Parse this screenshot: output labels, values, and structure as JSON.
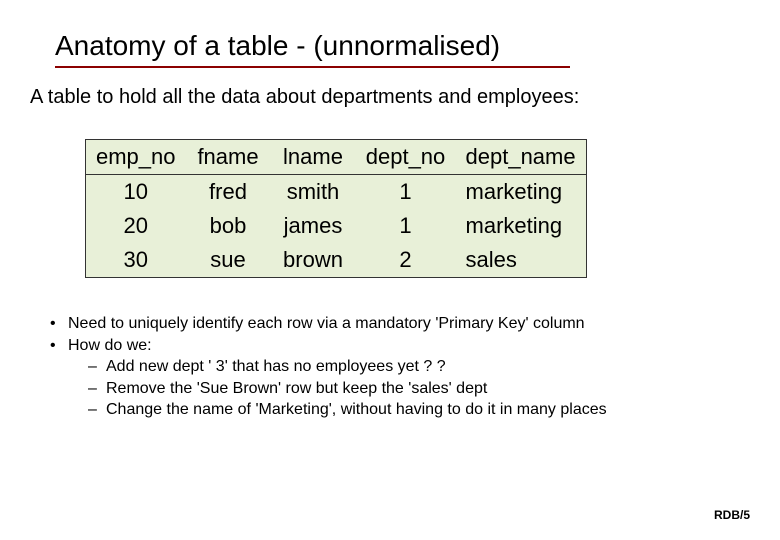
{
  "slide": {
    "title": "Anatomy of a table - (unnormalised)",
    "subtitle": "A table to hold all the data about departments and employees:",
    "footer": "RDB/5"
  },
  "table": {
    "type": "table",
    "background_color": "#e8f0d8",
    "border_color": "#333333",
    "header_fontsize": 22,
    "cell_fontsize": 22,
    "columns": [
      "emp_no",
      "fname",
      "lname",
      "dept_no",
      "dept_name"
    ],
    "rows": [
      {
        "emp_no": "10",
        "fname": "fred",
        "lname": "smith",
        "dept_no": "1",
        "dept_name": "marketing"
      },
      {
        "emp_no": "20",
        "fname": "bob",
        "lname": "james",
        "dept_no": "1",
        "dept_name": "marketing"
      },
      {
        "emp_no": "30",
        "fname": "sue",
        "lname": "brown",
        "dept_no": "2",
        "dept_name": "sales"
      }
    ]
  },
  "bullets": {
    "b1": "Need to uniquely identify each row via a mandatory 'Primary Key' column",
    "b2": "How do we:",
    "sub1": "Add new dept ' 3'  that has no employees yet ? ?",
    "sub2": "Remove the 'Sue Brown' row but keep the 'sales' dept",
    "sub3": "Change the name of 'Marketing', without having to do it in many places"
  },
  "style": {
    "title_underline_color": "#8b0000",
    "title_fontsize": 28,
    "subtitle_fontsize": 20,
    "bullet_fontsize": 16,
    "footer_fontsize": 12,
    "background_color": "#ffffff"
  }
}
